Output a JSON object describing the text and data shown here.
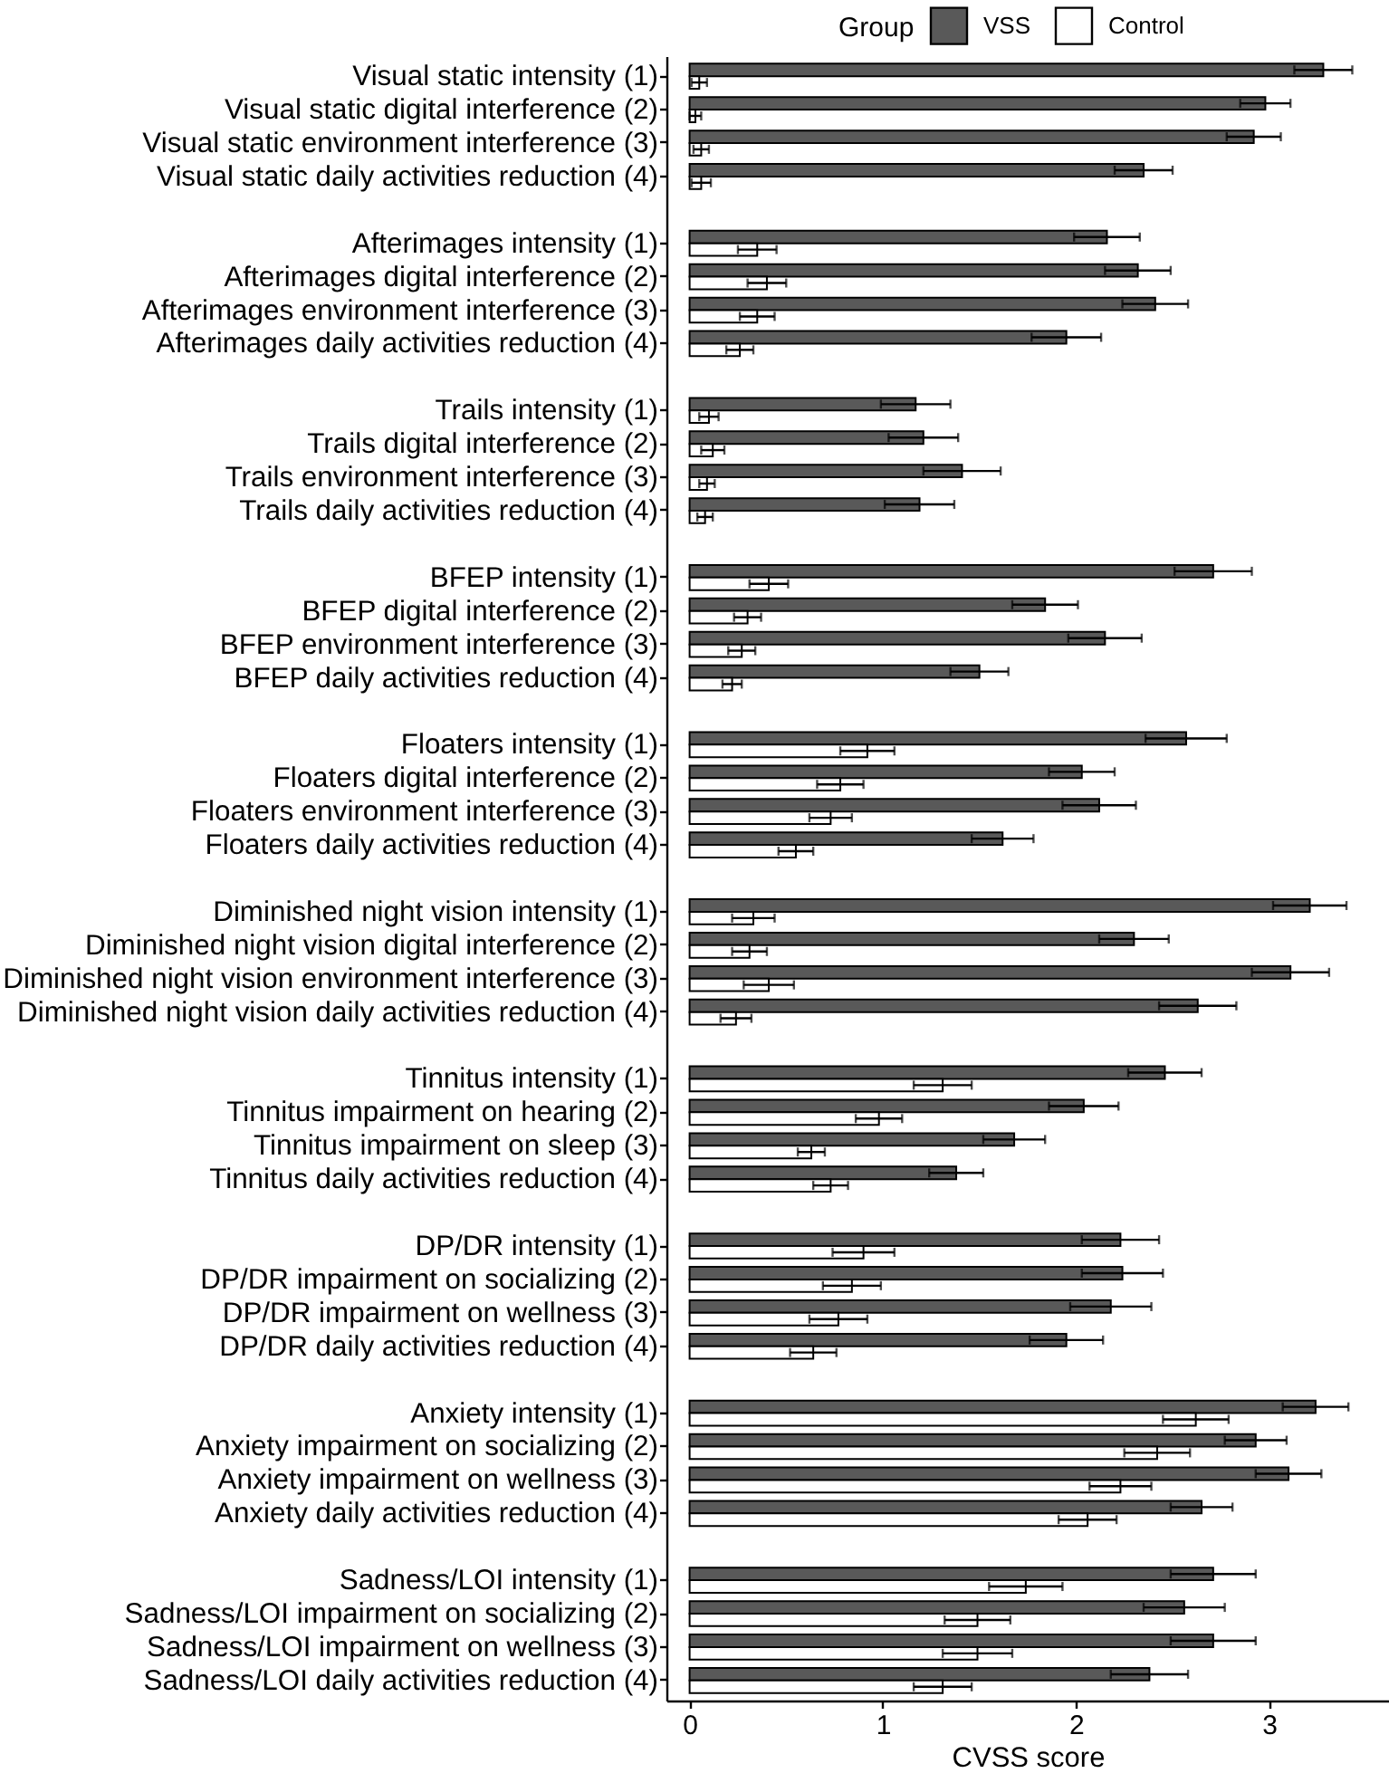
{
  "chart_data": {
    "type": "bar",
    "orientation": "horizontal",
    "xlabel": "CVSS score",
    "legend_title": "Group",
    "legend": "top",
    "categories": [
      "Visual static intensity (1)",
      "Visual static digital interference (2)",
      "Visual static environment interference (3)",
      "Visual static daily activities reduction (4)",
      null,
      "Afterimages intensity (1)",
      "Afterimages digital interference (2)",
      "Afterimages environment interference (3)",
      "Afterimages daily activities reduction (4)",
      null,
      "Trails intensity (1)",
      "Trails digital interference (2)",
      "Trails environment interference (3)",
      "Trails daily activities reduction (4)",
      null,
      "BFEP intensity (1)",
      "BFEP digital interference (2)",
      "BFEP environment interference (3)",
      "BFEP daily activities reduction (4)",
      null,
      "Floaters intensity (1)",
      "Floaters digital interference (2)",
      "Floaters environment interference (3)",
      "Floaters daily activities reduction (4)",
      null,
      "Diminished night vision intensity (1)",
      "Diminished night vision digital interference (2)",
      "Diminished night vision environment interference (3)",
      "Diminished night vision daily activities reduction (4)",
      null,
      "Tinnitus intensity (1)",
      "Tinnitus impairment on hearing (2)",
      "Tinnitus impairment on sleep (3)",
      "Tinnitus daily activities reduction (4)",
      null,
      "DP/DR intensity (1)",
      "DP/DR impairment on socializing (2)",
      "DP/DR impairment on wellness (3)",
      "DP/DR daily activities reduction (4)",
      null,
      "Anxiety intensity (1)",
      "Anxiety impairment on socializing (2)",
      "Anxiety impairment on wellness (3)",
      "Anxiety daily activities reduction (4)",
      null,
      "Sadness/LOI intensity (1)",
      "Sadness/LOI impairment on socializing (2)",
      "Sadness/LOI impairment on wellness (3)",
      "Sadness/LOI daily activities reduction (4)"
    ],
    "series": [
      {
        "name": "VSS",
        "color": "#595959",
        "values": [
          3.28,
          2.98,
          2.92,
          2.35,
          null,
          2.16,
          2.32,
          2.41,
          1.95,
          null,
          1.17,
          1.21,
          1.41,
          1.19,
          null,
          2.71,
          1.84,
          2.15,
          1.5,
          null,
          2.57,
          2.03,
          2.12,
          1.62,
          null,
          3.21,
          2.3,
          3.11,
          2.63,
          null,
          2.46,
          2.04,
          1.68,
          1.38,
          null,
          2.23,
          2.24,
          2.18,
          1.95,
          null,
          3.24,
          2.93,
          3.1,
          2.65,
          null,
          2.71,
          2.56,
          2.71,
          2.38
        ],
        "errors": [
          0.15,
          0.13,
          0.14,
          0.15,
          null,
          0.17,
          0.17,
          0.17,
          0.18,
          null,
          0.18,
          0.18,
          0.2,
          0.18,
          null,
          0.2,
          0.17,
          0.19,
          0.15,
          null,
          0.21,
          0.17,
          0.19,
          0.16,
          null,
          0.19,
          0.18,
          0.2,
          0.2,
          null,
          0.19,
          0.18,
          0.16,
          0.14,
          null,
          0.2,
          0.21,
          0.21,
          0.19,
          null,
          0.17,
          0.16,
          0.17,
          0.16,
          null,
          0.22,
          0.21,
          0.22,
          0.2
        ]
      },
      {
        "name": "Control",
        "color": "#ffffff",
        "values": [
          0.05,
          0.03,
          0.06,
          0.06,
          null,
          0.35,
          0.4,
          0.35,
          0.26,
          null,
          0.1,
          0.12,
          0.09,
          0.08,
          null,
          0.41,
          0.3,
          0.27,
          0.22,
          null,
          0.92,
          0.78,
          0.73,
          0.55,
          null,
          0.33,
          0.31,
          0.41,
          0.24,
          null,
          1.31,
          0.98,
          0.63,
          0.73,
          null,
          0.9,
          0.84,
          0.77,
          0.64,
          null,
          2.62,
          2.42,
          2.23,
          2.06,
          null,
          1.74,
          1.49,
          1.49,
          1.31
        ],
        "errors": [
          0.04,
          0.03,
          0.04,
          0.05,
          null,
          0.1,
          0.1,
          0.09,
          0.07,
          null,
          0.05,
          0.06,
          0.04,
          0.04,
          null,
          0.1,
          0.07,
          0.07,
          0.05,
          null,
          0.14,
          0.12,
          0.11,
          0.09,
          null,
          0.11,
          0.09,
          0.13,
          0.08,
          null,
          0.15,
          0.12,
          0.07,
          0.09,
          null,
          0.16,
          0.15,
          0.15,
          0.12,
          null,
          0.17,
          0.17,
          0.16,
          0.15,
          null,
          0.19,
          0.17,
          0.18,
          0.15
        ]
      }
    ],
    "xlim": [
      -0.12,
      3.62
    ],
    "xticks": [
      0,
      1,
      2,
      3
    ]
  }
}
